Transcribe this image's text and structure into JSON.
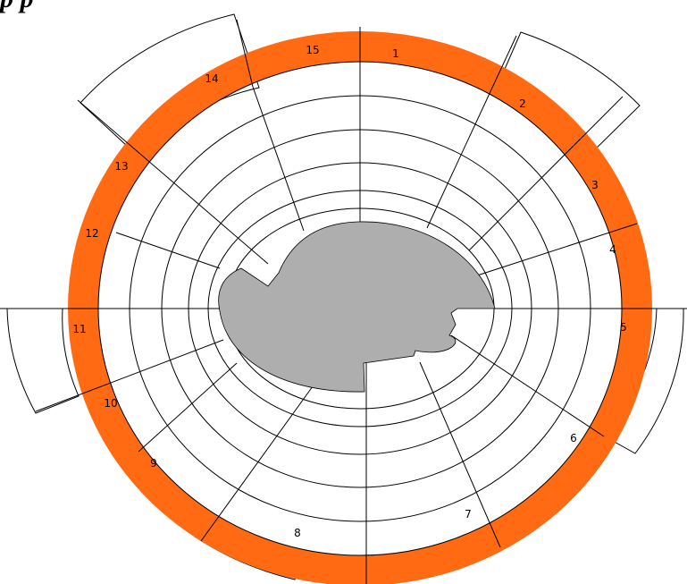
{
  "header": {
    "cut_off_title": "p   p"
  },
  "colors": {
    "ring": "#ff6a13",
    "core": "#aeaeae",
    "line": "#000000",
    "background": "#ffffff"
  },
  "segments": [
    {
      "label": "1"
    },
    {
      "label": "2"
    },
    {
      "label": "3"
    },
    {
      "label": "4"
    },
    {
      "label": "5"
    },
    {
      "label": "6"
    },
    {
      "label": "7"
    },
    {
      "label": "8"
    },
    {
      "label": "9"
    },
    {
      "label": "10"
    },
    {
      "label": "11"
    },
    {
      "label": "12"
    },
    {
      "label": "13"
    },
    {
      "label": "14"
    },
    {
      "label": "15"
    }
  ]
}
